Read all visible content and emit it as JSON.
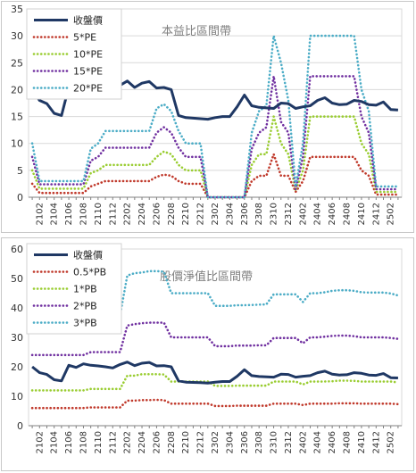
{
  "chart_data": [
    {
      "type": "line",
      "title": "本益比區間帶",
      "xlabel": "",
      "ylabel": "",
      "ylim": [
        0,
        35
      ],
      "yticks": [
        0,
        5,
        10,
        15,
        20,
        25,
        30,
        35
      ],
      "x_tick_labels": [
        "2102",
        "2104",
        "2106",
        "2108",
        "2110",
        "2112",
        "2202",
        "2204",
        "2206",
        "2208",
        "2210",
        "2212",
        "2302",
        "2304",
        "2306",
        "2308",
        "2310",
        "2312",
        "2402",
        "2404",
        "2406",
        "2408",
        "2410",
        "2412",
        "2502"
      ],
      "x": [
        "2101",
        "2102",
        "2103",
        "2104",
        "2105",
        "2106",
        "2107",
        "2108",
        "2109",
        "2110",
        "2111",
        "2112",
        "2201",
        "2202",
        "2203",
        "2204",
        "2205",
        "2206",
        "2207",
        "2208",
        "2209",
        "2210",
        "2211",
        "2212",
        "2301",
        "2302",
        "2303",
        "2304",
        "2305",
        "2306",
        "2307",
        "2308",
        "2309",
        "2310",
        "2311",
        "2312",
        "2401",
        "2402",
        "2403",
        "2404",
        "2405",
        "2406",
        "2407",
        "2408",
        "2409",
        "2410",
        "2411",
        "2412",
        "2501",
        "2502",
        "2503"
      ],
      "grid": true,
      "legend_position": "top-left",
      "series": [
        {
          "name": "收盤價",
          "color": "#1f3864",
          "style": "solid",
          "values": [
            20.0,
            18.0,
            17.4,
            15.6,
            15.2,
            20.5,
            19.8,
            21.0,
            20.5,
            20.3,
            20.0,
            19.6,
            20.8,
            21.6,
            20.4,
            21.2,
            21.5,
            20.3,
            20.4,
            20.0,
            15.2,
            14.8,
            14.7,
            14.6,
            14.5,
            14.8,
            15.0,
            15.0,
            16.8,
            19.0,
            17.0,
            16.7,
            16.6,
            16.5,
            17.5,
            17.4,
            16.5,
            16.8,
            17.0,
            18.0,
            18.5,
            17.5,
            17.2,
            17.3,
            18.0,
            17.8,
            17.2,
            17.1,
            17.7,
            16.3,
            16.2
          ]
        },
        {
          "name": "5*PE",
          "color": "#c0392b",
          "style": "dotted",
          "values": [
            2.5,
            0.8,
            0.8,
            0.8,
            0.8,
            0.8,
            0.8,
            0.8,
            2.0,
            2.5,
            3.0,
            3.0,
            3.0,
            3.0,
            3.0,
            3.0,
            3.0,
            3.8,
            4.2,
            4.0,
            3.0,
            2.5,
            2.5,
            2.5,
            0,
            0,
            0,
            0,
            0,
            0,
            3.0,
            4.0,
            4.0,
            8.0,
            4.0,
            4.0,
            1.0,
            3.0,
            7.5,
            7.5,
            7.5,
            7.5,
            7.5,
            7.5,
            7.5,
            5.0,
            4.0,
            0.5,
            0.5,
            0.5,
            0.5
          ]
        },
        {
          "name": "10*PE",
          "color": "#9acd32",
          "style": "dotted",
          "values": [
            5.0,
            1.6,
            1.6,
            1.6,
            1.6,
            1.6,
            1.6,
            1.6,
            4.5,
            5.0,
            6.0,
            6.0,
            6.0,
            6.0,
            6.0,
            6.0,
            6.0,
            7.5,
            8.5,
            8.0,
            6.0,
            5.0,
            5.0,
            5.0,
            0,
            0,
            0,
            0,
            0,
            0,
            6.0,
            8.0,
            8.0,
            15.0,
            10.0,
            8.0,
            1.2,
            5.0,
            15.0,
            15.0,
            15.0,
            15.0,
            15.0,
            15.0,
            15.0,
            10.0,
            8.0,
            1.0,
            1.0,
            1.0,
            1.0
          ]
        },
        {
          "name": "15*PE",
          "color": "#7030a0",
          "style": "dotted",
          "values": [
            7.5,
            2.4,
            2.4,
            2.4,
            2.4,
            2.4,
            2.4,
            2.4,
            6.8,
            7.5,
            9.2,
            9.2,
            9.2,
            9.2,
            9.2,
            9.2,
            9.2,
            12.0,
            13.0,
            12.0,
            9.2,
            7.5,
            7.5,
            7.5,
            0,
            0,
            0,
            0,
            0,
            0,
            9.0,
            12.0,
            13.0,
            22.5,
            14.0,
            12.0,
            1.5,
            7.5,
            22.5,
            22.5,
            22.5,
            22.5,
            22.5,
            22.5,
            22.5,
            15.0,
            12.0,
            1.5,
            1.5,
            1.5,
            1.5
          ]
        },
        {
          "name": "20*PE",
          "color": "#4bacc6",
          "style": "dotted",
          "values": [
            10.0,
            3.0,
            3.0,
            3.0,
            3.0,
            3.0,
            3.0,
            3.0,
            9.0,
            10.0,
            12.3,
            12.3,
            12.3,
            12.3,
            12.3,
            12.3,
            12.3,
            16.5,
            17.3,
            16.0,
            12.3,
            10.0,
            10.0,
            10.0,
            0,
            0,
            0,
            0,
            0,
            0,
            12.0,
            16.0,
            17.0,
            30.0,
            25.0,
            18.0,
            2.0,
            10.0,
            30.0,
            30.0,
            30.0,
            30.0,
            30.0,
            30.0,
            30.0,
            20.0,
            16.0,
            2.0,
            2.0,
            2.0,
            2.0
          ]
        }
      ]
    },
    {
      "type": "line",
      "title": "股價淨值比區間帶",
      "xlabel": "",
      "ylabel": "",
      "ylim": [
        0,
        60
      ],
      "yticks": [
        0,
        10,
        20,
        30,
        40,
        50,
        60
      ],
      "x_tick_labels": [
        "2102",
        "2104",
        "2106",
        "2108",
        "2110",
        "2112",
        "2202",
        "2204",
        "2206",
        "2208",
        "2210",
        "2212",
        "2302",
        "2304",
        "2306",
        "2308",
        "2310",
        "2312",
        "2402",
        "2404",
        "2406",
        "2408",
        "2410",
        "2412",
        "2502"
      ],
      "x": [
        "2101",
        "2102",
        "2103",
        "2104",
        "2105",
        "2106",
        "2107",
        "2108",
        "2109",
        "2110",
        "2111",
        "2112",
        "2201",
        "2202",
        "2203",
        "2204",
        "2205",
        "2206",
        "2207",
        "2208",
        "2209",
        "2210",
        "2211",
        "2212",
        "2301",
        "2302",
        "2303",
        "2304",
        "2305",
        "2306",
        "2307",
        "2308",
        "2309",
        "2310",
        "2311",
        "2312",
        "2401",
        "2402",
        "2403",
        "2404",
        "2405",
        "2406",
        "2407",
        "2408",
        "2409",
        "2410",
        "2411",
        "2412",
        "2501",
        "2502",
        "2503"
      ],
      "grid": false,
      "legend_position": "top-left",
      "series": [
        {
          "name": "收盤價",
          "color": "#1f3864",
          "style": "solid",
          "values": [
            20.0,
            18.0,
            17.4,
            15.6,
            15.2,
            20.5,
            19.8,
            21.0,
            20.5,
            20.3,
            20.0,
            19.6,
            20.8,
            21.6,
            20.4,
            21.2,
            21.5,
            20.3,
            20.4,
            20.0,
            15.2,
            14.8,
            14.7,
            14.6,
            14.5,
            14.8,
            15.0,
            15.0,
            16.8,
            19.0,
            17.0,
            16.7,
            16.6,
            16.5,
            17.5,
            17.4,
            16.5,
            16.8,
            17.0,
            18.0,
            18.5,
            17.5,
            17.2,
            17.3,
            18.0,
            17.8,
            17.2,
            17.1,
            17.7,
            16.3,
            16.2
          ]
        },
        {
          "name": "0.5*PB",
          "color": "#c0392b",
          "style": "dotted",
          "values": [
            6.0,
            6.0,
            6.0,
            6.0,
            6.0,
            6.0,
            6.0,
            6.0,
            6.2,
            6.2,
            6.2,
            6.2,
            6.2,
            8.5,
            8.5,
            8.7,
            8.7,
            8.8,
            8.7,
            7.5,
            7.5,
            7.5,
            7.5,
            7.5,
            7.5,
            6.7,
            6.7,
            6.7,
            6.8,
            6.8,
            6.8,
            6.8,
            6.8,
            7.5,
            7.5,
            7.5,
            7.5,
            7.0,
            7.5,
            7.5,
            7.5,
            7.5,
            7.6,
            7.6,
            7.6,
            7.5,
            7.5,
            7.5,
            7.5,
            7.5,
            7.3
          ]
        },
        {
          "name": "1*PB",
          "color": "#9acd32",
          "style": "dotted",
          "values": [
            12.0,
            12.0,
            12.0,
            12.0,
            12.0,
            12.0,
            12.0,
            12.0,
            12.5,
            12.5,
            12.5,
            12.5,
            12.5,
            17.0,
            17.0,
            17.5,
            17.5,
            17.5,
            17.4,
            15.0,
            15.0,
            15.0,
            15.0,
            15.0,
            15.0,
            13.5,
            13.5,
            13.5,
            13.6,
            13.6,
            13.6,
            13.6,
            13.6,
            15.0,
            15.0,
            15.0,
            15.0,
            14.0,
            15.0,
            15.0,
            15.0,
            15.1,
            15.3,
            15.3,
            15.2,
            15.0,
            15.0,
            15.0,
            15.0,
            15.0,
            14.7
          ]
        },
        {
          "name": "2*PB",
          "color": "#7030a0",
          "style": "dotted",
          "values": [
            24.0,
            24.0,
            24.0,
            24.0,
            24.0,
            24.0,
            24.0,
            24.0,
            25.0,
            25.0,
            25.0,
            25.0,
            25.0,
            34.0,
            34.5,
            34.8,
            35.0,
            35.0,
            35.0,
            30.0,
            30.0,
            30.0,
            30.0,
            30.0,
            30.0,
            27.0,
            27.0,
            27.0,
            27.2,
            27.2,
            27.2,
            27.3,
            27.3,
            29.8,
            29.8,
            29.8,
            29.8,
            28.0,
            30.0,
            30.0,
            30.2,
            30.5,
            30.6,
            30.6,
            30.4,
            30.0,
            30.0,
            30.0,
            30.0,
            29.8,
            29.5
          ]
        },
        {
          "name": "3*PB",
          "color": "#4bacc6",
          "style": "dotted",
          "values": [
            36.0,
            36.0,
            36.0,
            36.0,
            36.0,
            36.0,
            36.0,
            36.0,
            37.5,
            37.5,
            37.5,
            37.5,
            37.5,
            51.0,
            51.8,
            52.0,
            52.5,
            52.5,
            52.3,
            45.0,
            45.0,
            45.0,
            45.0,
            45.0,
            45.0,
            40.7,
            40.7,
            40.7,
            40.9,
            40.9,
            41.0,
            41.1,
            41.2,
            44.6,
            44.6,
            44.6,
            44.6,
            42.0,
            45.0,
            45.0,
            45.3,
            45.8,
            46.0,
            46.0,
            45.8,
            45.3,
            45.2,
            45.2,
            45.2,
            44.9,
            44.2
          ]
        }
      ]
    }
  ]
}
